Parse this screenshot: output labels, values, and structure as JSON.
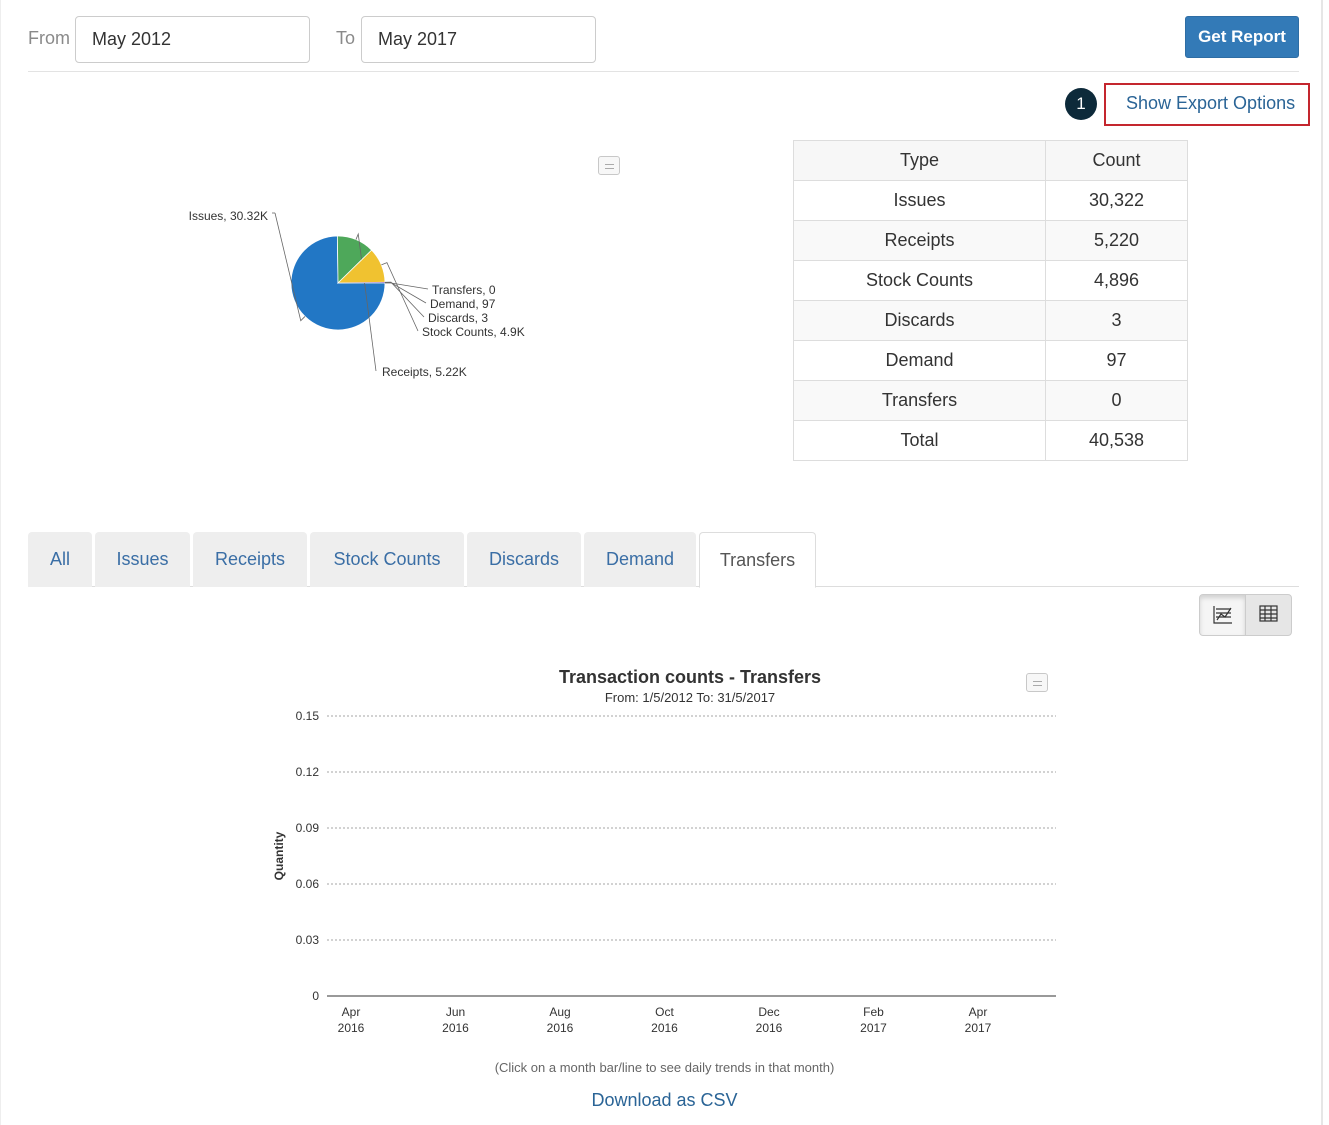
{
  "filters": {
    "from_label": "From",
    "from_value": "May 2012",
    "to_label": "To",
    "to_value": "May 2017",
    "get_report_label": "Get Report"
  },
  "export": {
    "step_number": "1",
    "show_export_label": "Show Export Options"
  },
  "summary_table": {
    "headers": [
      "Type",
      "Count"
    ],
    "rows": [
      {
        "type": "Issues",
        "count": "30,322"
      },
      {
        "type": "Receipts",
        "count": "5,220"
      },
      {
        "type": "Stock Counts",
        "count": "4,896"
      },
      {
        "type": "Discards",
        "count": "3"
      },
      {
        "type": "Demand",
        "count": "97"
      },
      {
        "type": "Transfers",
        "count": "0"
      },
      {
        "type": "Total",
        "count": "40,538"
      }
    ]
  },
  "tabs": [
    {
      "label": "All"
    },
    {
      "label": "Issues"
    },
    {
      "label": "Receipts"
    },
    {
      "label": "Stock Counts"
    },
    {
      "label": "Discards"
    },
    {
      "label": "Demand"
    },
    {
      "label": "Transfers",
      "active": true
    }
  ],
  "view_toggle": {
    "selected": "chart",
    "icons": [
      "chart-icon",
      "table-icon"
    ]
  },
  "chart_data": [
    {
      "type": "pie",
      "slices": [
        {
          "name": "Issues",
          "value": 30322,
          "label": "Issues, 30.32K",
          "color": "#2277c5"
        },
        {
          "name": "Receipts",
          "value": 5220,
          "label": "Receipts, 5.22K",
          "color": "#4ea85a"
        },
        {
          "name": "Stock Counts",
          "value": 4896,
          "label": "Stock Counts, 4.9K",
          "color": "#f0c230"
        },
        {
          "name": "Discards",
          "value": 3,
          "label": "Discards, 3",
          "color": "#d9534f"
        },
        {
          "name": "Demand",
          "value": 97,
          "label": "Demand, 97",
          "color": "#8e6cc0"
        },
        {
          "name": "Transfers",
          "value": 0,
          "label": "Transfers, 0",
          "color": "#888888"
        }
      ]
    },
    {
      "type": "line",
      "title": "Transaction counts - Transfers",
      "subtitle": "From: 1/5/2012 To: 31/5/2017",
      "ylabel": "Quantity",
      "xlabel": "",
      "ylim": [
        0,
        0.15
      ],
      "yticks": [
        "0",
        "0.03",
        "0.06",
        "0.09",
        "0.12",
        "0.15"
      ],
      "xticks": [
        {
          "month": "Apr",
          "year": "2016"
        },
        {
          "month": "Jun",
          "year": "2016"
        },
        {
          "month": "Aug",
          "year": "2016"
        },
        {
          "month": "Oct",
          "year": "2016"
        },
        {
          "month": "Dec",
          "year": "2016"
        },
        {
          "month": "Feb",
          "year": "2017"
        },
        {
          "month": "Apr",
          "year": "2017"
        }
      ],
      "grid": true,
      "series": []
    }
  ],
  "chart_footnote": "(Click on a month bar/line to see daily trends in that month)",
  "download_csv_label": "Download as CSV"
}
